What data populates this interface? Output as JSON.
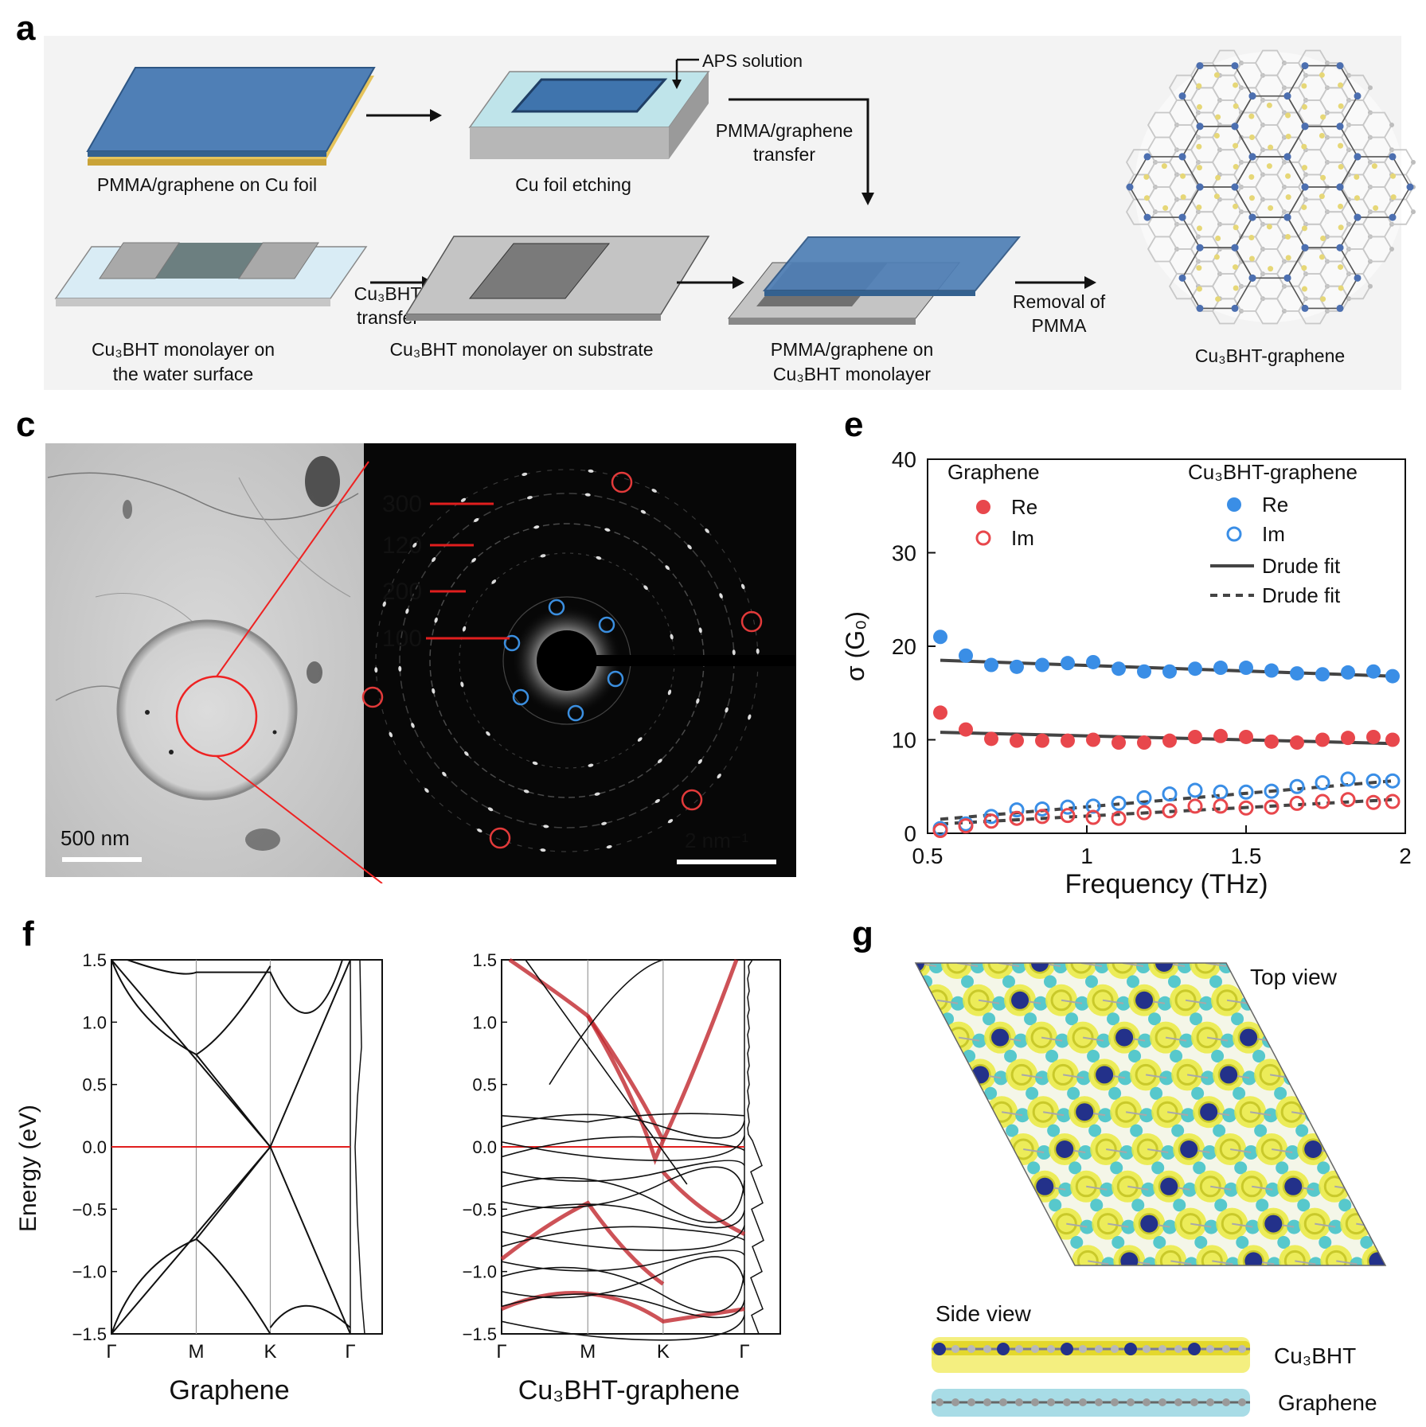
{
  "panels": {
    "a": {
      "label": "a",
      "steps": {
        "s1": "PMMA/graphene on Cu foil",
        "s2": "Cu foil etching",
        "aps": "APS solution",
        "transfer1": "PMMA/graphene",
        "transfer2": "transfer",
        "s4_1": "Cu₃BHT monolayer on",
        "s4_2": "the water surface",
        "cuTransfer1": "Cu₃BHT",
        "cuTransfer2": "transfer",
        "s5": "Cu₃BHT monolayer on substrate",
        "s6_1": "PMMA/graphene on",
        "s6_2": "Cu₃BHT monolayer",
        "removal1": "Removal of",
        "removal2": "PMMA",
        "s7": "Cu₃BHT-graphene"
      }
    },
    "c": {
      "label": "c",
      "scaleLeft": "500 nm",
      "scaleRight": "2 nm⁻¹",
      "rings": [
        "300",
        "120",
        "200",
        "100"
      ]
    },
    "e": {
      "label": "e"
    },
    "f": {
      "label": "f",
      "leftTitle": "Graphene",
      "rightTitle": "Cu₃BHT-graphene"
    },
    "g": {
      "label": "g",
      "topView": "Top view",
      "sideView": "Side view",
      "layerTop": "Cu₃BHT",
      "layerBottom": "Graphene"
    }
  },
  "chart_data": [
    {
      "type": "scatter",
      "panel": "e",
      "xlabel": "Frequency (THz)",
      "ylabel": "σ (G₀)",
      "xlim": [
        0.5,
        2
      ],
      "ylim": [
        0,
        40
      ],
      "xticks": [
        "0.5",
        "1",
        "1.5",
        "2"
      ],
      "yticks": [
        "0",
        "10",
        "20",
        "30",
        "40"
      ],
      "legend": {
        "graphene_title": "Graphene",
        "cu_title": "Cu₃BHT-graphene",
        "re": "Re",
        "im": "Im",
        "solid": "Drude fit",
        "dashed": "Drude fit"
      },
      "x": [
        0.54,
        0.62,
        0.7,
        0.78,
        0.86,
        0.94,
        1.02,
        1.1,
        1.18,
        1.26,
        1.34,
        1.42,
        1.5,
        1.58,
        1.66,
        1.74,
        1.82,
        1.9,
        1.96
      ],
      "series": [
        {
          "name": "Re",
          "group": "Cu₃BHT-graphene",
          "color": "#3a8ee6",
          "filled": true,
          "values": [
            21.0,
            19.0,
            18.0,
            17.8,
            18.0,
            18.2,
            18.3,
            17.6,
            17.3,
            17.3,
            17.6,
            17.7,
            17.7,
            17.4,
            17.1,
            17.0,
            17.2,
            17.3,
            16.8
          ]
        },
        {
          "name": "Re",
          "group": "Graphene",
          "color": "#e8474c",
          "filled": true,
          "values": [
            12.9,
            11.1,
            10.1,
            9.9,
            9.9,
            9.9,
            10.0,
            9.7,
            9.7,
            9.9,
            10.3,
            10.4,
            10.3,
            9.8,
            9.7,
            10.0,
            10.2,
            10.3,
            10.0
          ]
        },
        {
          "name": "Im",
          "group": "Cu₃BHT-graphene",
          "color": "#3a8ee6",
          "filled": false,
          "values": [
            0.5,
            1.0,
            1.8,
            2.5,
            2.6,
            2.8,
            2.9,
            3.2,
            3.8,
            4.2,
            4.6,
            4.4,
            4.4,
            4.5,
            5.0,
            5.4,
            5.8,
            5.6,
            5.6
          ]
        },
        {
          "name": "Im",
          "group": "Graphene",
          "color": "#e8474c",
          "filled": false,
          "values": [
            0.3,
            0.8,
            1.3,
            1.6,
            1.8,
            1.9,
            1.7,
            1.6,
            2.2,
            2.4,
            2.9,
            2.9,
            2.7,
            2.8,
            3.2,
            3.4,
            3.6,
            3.3,
            3.4
          ]
        }
      ],
      "fits": [
        {
          "style": "solid",
          "x": [
            0.54,
            1.96
          ],
          "values": [
            18.5,
            16.8
          ]
        },
        {
          "style": "solid",
          "x": [
            0.54,
            1.96
          ],
          "values": [
            10.8,
            9.6
          ]
        },
        {
          "style": "dashed",
          "x": [
            0.54,
            1.96
          ],
          "values": [
            1.5,
            5.6
          ]
        },
        {
          "style": "dashed",
          "x": [
            0.54,
            1.96
          ],
          "values": [
            1.0,
            3.6
          ]
        }
      ]
    },
    {
      "type": "line",
      "panel": "f-left",
      "title": "Graphene",
      "ylabel": "Energy (eV)",
      "ylim": [
        -1.5,
        1.5
      ],
      "yticks": [
        "1.5",
        "1.0",
        "0.5",
        "0.0",
        "−0.5",
        "−1.0",
        "−1.5"
      ],
      "kpoints": [
        "Γ",
        "M",
        "K",
        "Γ"
      ]
    },
    {
      "type": "line",
      "panel": "f-right",
      "title": "Cu₃BHT-graphene",
      "ylim": [
        -1.5,
        1.5
      ],
      "yticks": [
        "1.5",
        "1.0",
        "0.5",
        "0.0",
        "−0.5",
        "−1.0",
        "−1.5"
      ],
      "kpoints": [
        "Γ",
        "M",
        "K",
        "Γ"
      ]
    }
  ]
}
